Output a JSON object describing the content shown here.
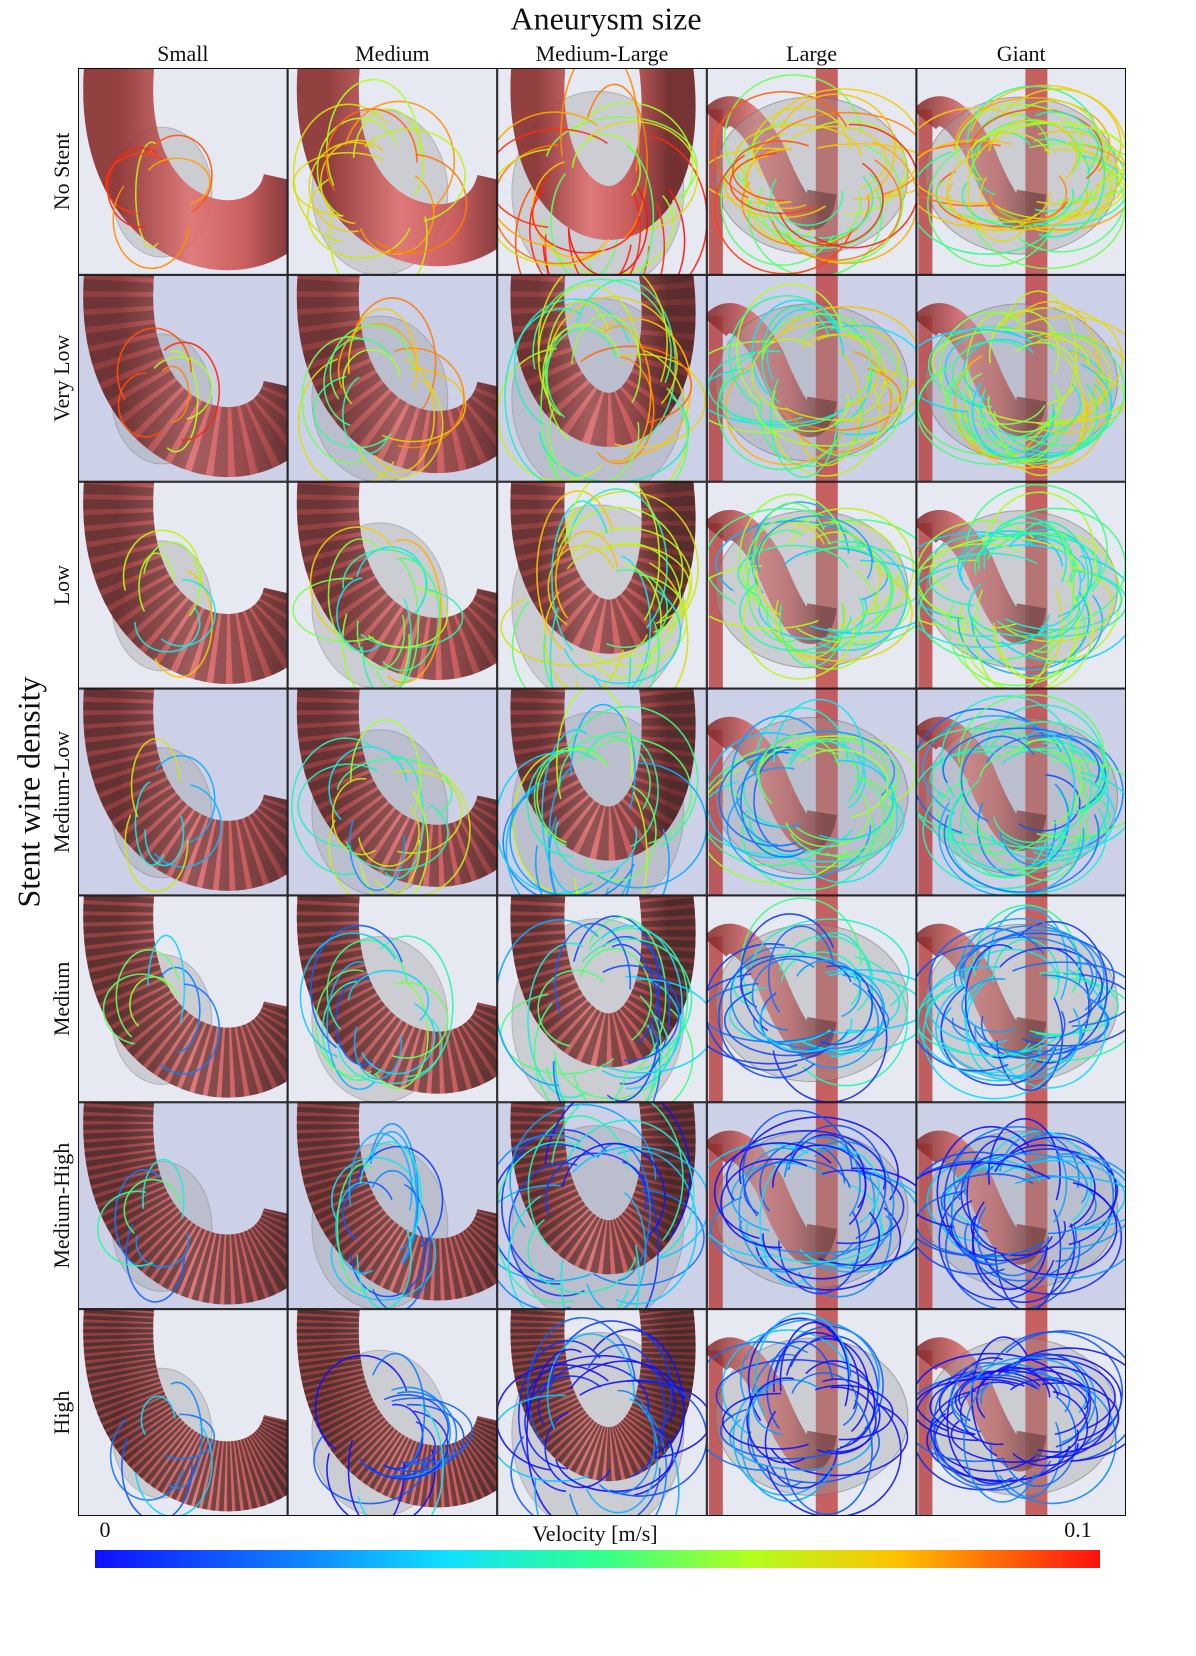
{
  "figure": {
    "title": "Aneurysm size",
    "columns": [
      "Small",
      "Medium",
      "Medium-Large",
      "Large",
      "Giant"
    ],
    "row_axis_label": "Stent wire density",
    "rows": [
      "No Stent",
      "Very Low",
      "Low",
      "Medium-Low",
      "Medium",
      "Medium-High",
      "High"
    ],
    "colorbar": {
      "label": "Velocity [m/s]",
      "min": 0,
      "max": 0.1
    }
  }
}
